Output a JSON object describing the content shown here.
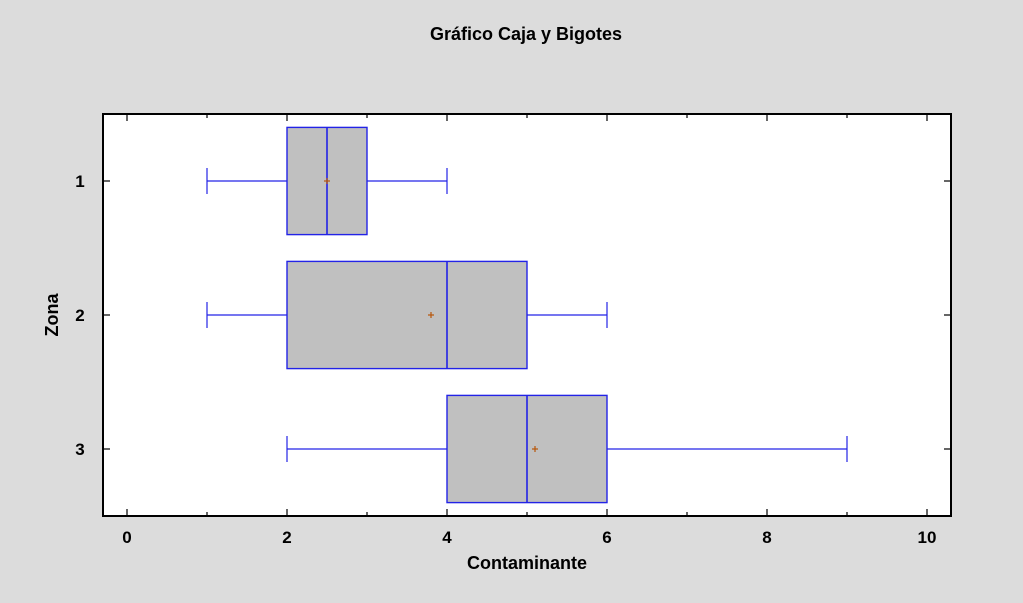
{
  "chart_data": {
    "type": "boxplot",
    "title": "Gráfico Caja y Bigotes",
    "xlabel": "Contaminante",
    "ylabel": "Zona",
    "xlim": [
      -0.3,
      10.3
    ],
    "x_ticks": [
      0,
      2,
      4,
      6,
      8,
      10
    ],
    "orientation": "horizontal",
    "grid": false,
    "colors": {
      "box_fill": "#c0c0c0",
      "box_stroke": "#2323e6",
      "mean_marker": "#b8560a",
      "plot_bg": "#ffffff",
      "page_bg": "#dcdcdc"
    },
    "categories": [
      "1",
      "2",
      "3"
    ],
    "boxes": [
      {
        "category": "1",
        "min": 1,
        "q1": 2,
        "median": 2.5,
        "q3": 3,
        "max": 4,
        "mean": 2.5
      },
      {
        "category": "2",
        "min": 1,
        "q1": 2,
        "median": 4,
        "q3": 5,
        "max": 6,
        "mean": 3.8
      },
      {
        "category": "3",
        "min": 2,
        "q1": 4,
        "median": 5,
        "q3": 6,
        "max": 9,
        "mean": 5.1
      }
    ]
  }
}
